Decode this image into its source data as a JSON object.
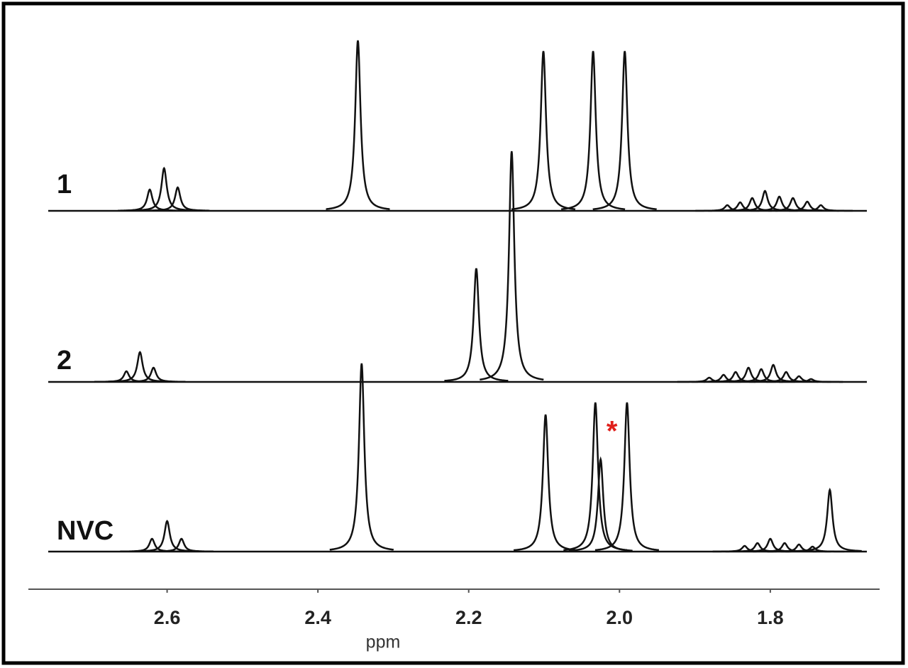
{
  "chart_data": {
    "type": "spectrum",
    "x_label": "ppm",
    "xlim": [
      2.784,
      1.655
    ],
    "xticks": [
      2.6,
      2.4,
      2.2,
      {
        "value": 2,
        "label": "2.0"
      },
      1.8
    ],
    "series": [
      {
        "name": "1",
        "color": "#111111",
        "x": [
          2.623,
          2.604,
          2.586,
          2.347,
          2.101,
          2.035,
          1.993,
          1.857,
          1.84,
          1.824,
          1.807,
          1.788,
          1.77,
          1.751,
          1.733
        ],
        "values": [
          30,
          60,
          33,
          240,
          225,
          225,
          225,
          8,
          12,
          18,
          28,
          20,
          18,
          13,
          8
        ]
      },
      {
        "name": "2",
        "color": "#111111",
        "x": [
          2.654,
          2.636,
          2.618,
          2.19,
          2.143,
          1.881,
          1.862,
          1.846,
          1.829,
          1.812,
          1.796,
          1.779,
          1.762,
          1.746
        ],
        "values": [
          15,
          42,
          20,
          160,
          325,
          6,
          10,
          14,
          20,
          18,
          24,
          14,
          8,
          4
        ]
      },
      {
        "name": "NVC",
        "color": "#111111",
        "x": [
          2.62,
          2.6,
          2.581,
          2.342,
          2.098,
          2.032,
          2.025,
          1.99,
          1.834,
          1.817,
          1.8,
          1.781,
          1.762,
          1.744,
          1.721
        ],
        "values": [
          18,
          43,
          18,
          265,
          193,
          210,
          130,
          210,
          8,
          12,
          18,
          12,
          10,
          7,
          87
        ]
      }
    ],
    "annotations": [
      {
        "text": "*",
        "x": 2.01,
        "color": "#e0201c"
      }
    ]
  }
}
